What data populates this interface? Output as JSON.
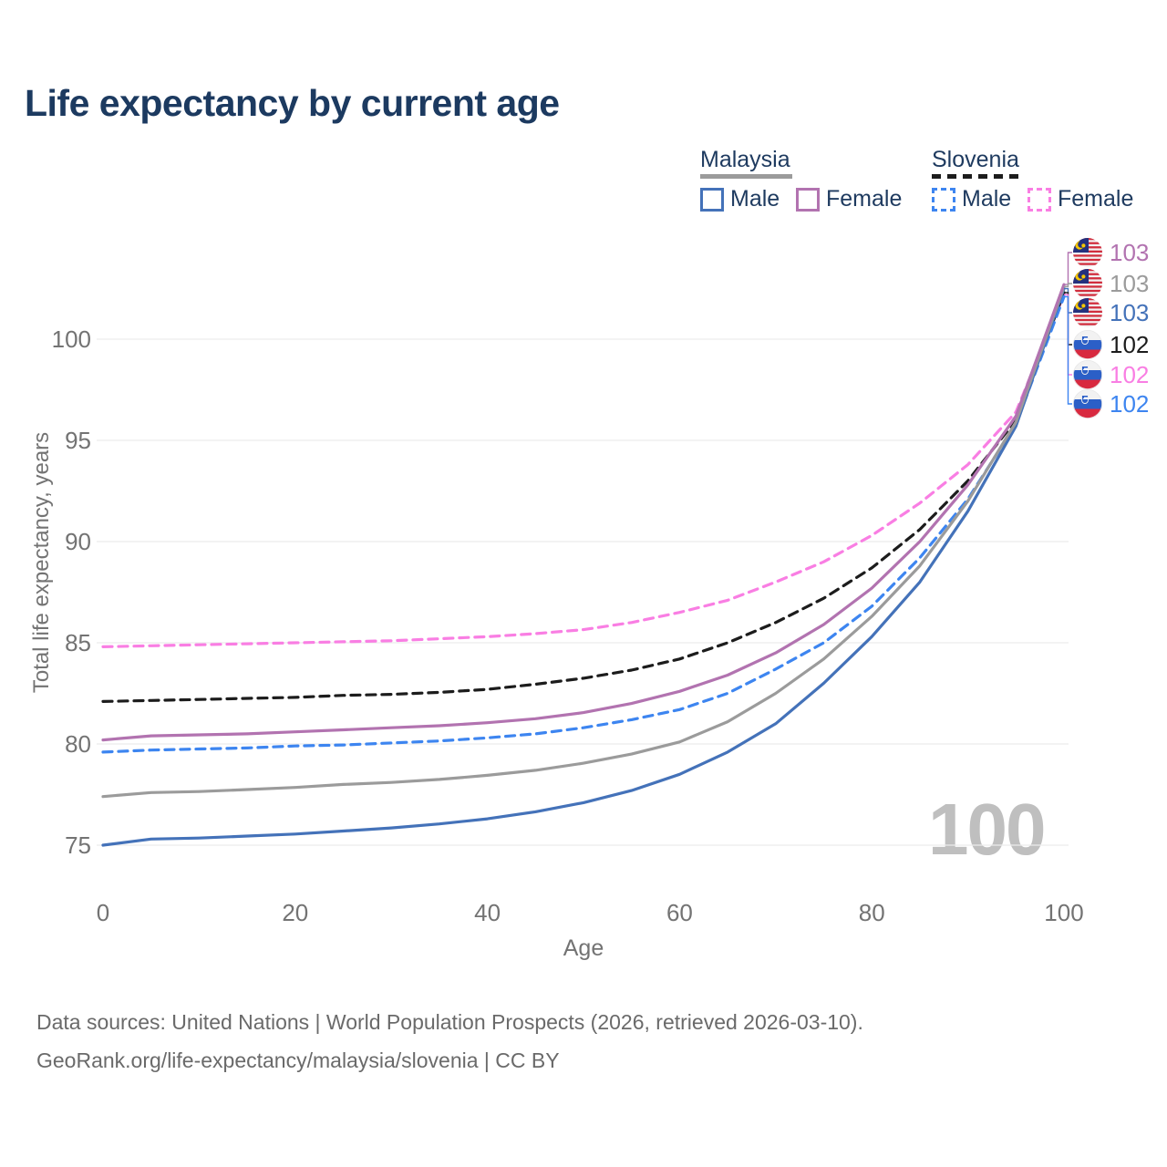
{
  "title": "Life expectancy by current age",
  "watermark": "100",
  "legend": {
    "groups": [
      {
        "name": "Malaysia",
        "line_style": "solid",
        "underline_color": "#9b9b9b",
        "items": [
          {
            "label": "Male",
            "color": "#4472b9"
          },
          {
            "label": "Female",
            "color": "#b273b0"
          }
        ]
      },
      {
        "name": "Slovenia",
        "line_style": "dashed",
        "underline_color": "#1c1c1c",
        "items": [
          {
            "label": "Male",
            "color": "#3d85f0"
          },
          {
            "label": "Female",
            "color": "#f97ee3"
          }
        ]
      }
    ]
  },
  "chart_data": {
    "type": "line",
    "title": "Life expectancy by current age",
    "xlabel": "Age",
    "ylabel": "Total life expectancy, years",
    "x_ticks": [
      0,
      20,
      40,
      60,
      80,
      100
    ],
    "y_ticks": [
      75,
      80,
      85,
      90,
      95,
      100
    ],
    "xlim": [
      0,
      100
    ],
    "ylim": [
      74,
      103.5
    ],
    "grid": "horizontal",
    "x": [
      0,
      5,
      10,
      15,
      20,
      25,
      30,
      35,
      40,
      45,
      50,
      55,
      60,
      65,
      70,
      75,
      80,
      85,
      90,
      95,
      100
    ],
    "series": [
      {
        "name": "Malaysia Female",
        "country": "Malaysia",
        "sex": "Female",
        "color": "#b273b0",
        "dashed": false,
        "flag": "malaysia",
        "end_label": "103",
        "values": [
          80.2,
          80.4,
          80.45,
          80.5,
          80.6,
          80.7,
          80.8,
          80.9,
          81.05,
          81.25,
          81.55,
          82.0,
          82.6,
          83.4,
          84.5,
          85.9,
          87.7,
          90.0,
          92.8,
          96.2,
          102.7
        ]
      },
      {
        "name": "Malaysia Total",
        "country": "Malaysia",
        "sex": "Both",
        "color": "#9b9b9b",
        "dashed": false,
        "flag": "malaysia",
        "end_label": "103",
        "values": [
          77.4,
          77.6,
          77.65,
          77.75,
          77.85,
          78.0,
          78.1,
          78.25,
          78.45,
          78.7,
          79.05,
          79.5,
          80.1,
          81.1,
          82.5,
          84.2,
          86.3,
          88.8,
          92.0,
          95.9,
          102.6
        ]
      },
      {
        "name": "Malaysia Male",
        "country": "Malaysia",
        "sex": "Male",
        "color": "#4472b9",
        "dashed": false,
        "flag": "malaysia",
        "end_label": "103",
        "values": [
          75.0,
          75.3,
          75.35,
          75.45,
          75.55,
          75.7,
          75.85,
          76.05,
          76.3,
          76.65,
          77.1,
          77.7,
          78.5,
          79.6,
          81.0,
          83.0,
          85.3,
          88.0,
          91.5,
          95.7,
          102.5
        ]
      },
      {
        "name": "Slovenia Total",
        "country": "Slovenia",
        "sex": "Both",
        "color": "#1c1c1c",
        "dashed": true,
        "flag": "slovenia",
        "end_label": "102",
        "values": [
          82.1,
          82.15,
          82.2,
          82.25,
          82.3,
          82.4,
          82.45,
          82.55,
          82.7,
          82.95,
          83.25,
          83.65,
          84.2,
          85.0,
          86.0,
          87.2,
          88.7,
          90.6,
          93.0,
          96.0,
          102.3
        ]
      },
      {
        "name": "Slovenia Female",
        "country": "Slovenia",
        "sex": "Female",
        "color": "#f97ee3",
        "dashed": true,
        "flag": "slovenia",
        "end_label": "102",
        "values": [
          84.8,
          84.85,
          84.9,
          84.95,
          85.0,
          85.05,
          85.1,
          85.2,
          85.3,
          85.45,
          85.65,
          86.0,
          86.5,
          87.1,
          88.0,
          89.0,
          90.3,
          91.9,
          93.8,
          96.4,
          102.2
        ]
      },
      {
        "name": "Slovenia Male",
        "country": "Slovenia",
        "sex": "Male",
        "color": "#3d85f0",
        "dashed": true,
        "flag": "slovenia",
        "end_label": "102",
        "values": [
          79.6,
          79.7,
          79.75,
          79.8,
          79.9,
          79.95,
          80.05,
          80.15,
          80.3,
          80.5,
          80.8,
          81.2,
          81.7,
          82.5,
          83.7,
          85.0,
          86.8,
          89.2,
          92.1,
          95.8,
          102.1
        ]
      }
    ]
  },
  "footer": {
    "line1": "Data sources: United Nations | World Population Prospects (2026, retrieved 2026-03-10).",
    "line2": "GeoRank.org/life-expectancy/malaysia/slovenia | CC BY"
  }
}
